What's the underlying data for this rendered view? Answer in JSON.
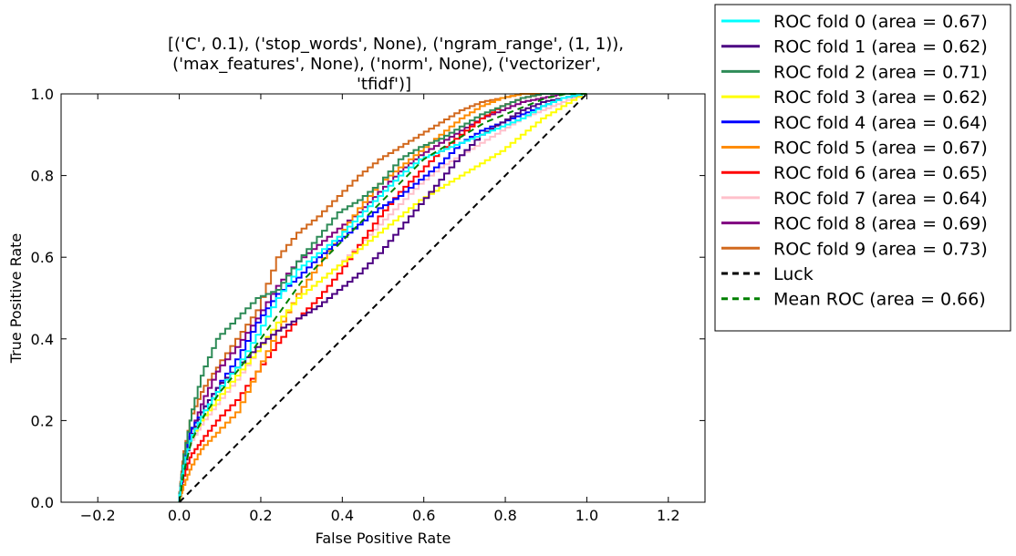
{
  "chart_data": {
    "type": "line",
    "title_lines": [
      "[('C', 0.1), ('stop_words', None), ('ngram_range', (1, 1)),",
      "('max_features', None), ('norm', None), ('vectorizer',",
      "'tfidf')]"
    ],
    "xlabel": "False Positive Rate",
    "ylabel": "True Positive Rate",
    "xlim": [
      -0.29,
      1.29
    ],
    "ylim": [
      0.0,
      1.0
    ],
    "x_ticks": [
      "−0.2",
      "0.0",
      "0.2",
      "0.4",
      "0.6",
      "0.8",
      "1.0",
      "1.2"
    ],
    "x_tick_values": [
      -0.2,
      0.0,
      0.2,
      0.4,
      0.6,
      0.8,
      1.0,
      1.2
    ],
    "y_ticks": [
      "0.0",
      "0.2",
      "0.4",
      "0.6",
      "0.8",
      "1.0"
    ],
    "y_tick_values": [
      0.0,
      0.2,
      0.4,
      0.6,
      0.8,
      1.0
    ],
    "grid": false,
    "legend_position": "outside-right",
    "series": [
      {
        "name": "ROC fold 0 (area = 0.67)",
        "color": "#00ffff",
        "dash": "solid",
        "x": [
          0,
          0.01,
          0.03,
          0.06,
          0.1,
          0.15,
          0.2,
          0.25,
          0.3,
          0.35,
          0.4,
          0.45,
          0.5,
          0.55,
          0.6,
          0.65,
          0.7,
          0.75,
          0.8,
          0.85,
          0.9,
          0.95,
          1.0
        ],
        "y": [
          0,
          0.07,
          0.15,
          0.21,
          0.27,
          0.33,
          0.41,
          0.5,
          0.57,
          0.61,
          0.65,
          0.7,
          0.75,
          0.8,
          0.84,
          0.86,
          0.88,
          0.9,
          0.92,
          0.94,
          0.97,
          0.99,
          1.0
        ]
      },
      {
        "name": "ROC fold 1 (area = 0.62)",
        "color": "#4b0082",
        "dash": "solid",
        "x": [
          0,
          0.01,
          0.03,
          0.06,
          0.1,
          0.15,
          0.2,
          0.25,
          0.3,
          0.35,
          0.4,
          0.45,
          0.5,
          0.55,
          0.6,
          0.65,
          0.7,
          0.75,
          0.8,
          0.85,
          0.9,
          0.95,
          1.0
        ],
        "y": [
          0,
          0.06,
          0.15,
          0.22,
          0.28,
          0.33,
          0.38,
          0.42,
          0.45,
          0.48,
          0.52,
          0.56,
          0.61,
          0.67,
          0.73,
          0.79,
          0.85,
          0.9,
          0.93,
          0.96,
          0.98,
          0.99,
          1.0
        ]
      },
      {
        "name": "ROC fold 2 (area = 0.71)",
        "color": "#2e8b57",
        "dash": "solid",
        "x": [
          0,
          0.01,
          0.03,
          0.06,
          0.1,
          0.15,
          0.2,
          0.25,
          0.3,
          0.35,
          0.4,
          0.45,
          0.5,
          0.55,
          0.6,
          0.65,
          0.7,
          0.75,
          0.8,
          0.85,
          0.9,
          0.95,
          1.0
        ],
        "y": [
          0,
          0.09,
          0.2,
          0.31,
          0.4,
          0.45,
          0.5,
          0.52,
          0.59,
          0.65,
          0.71,
          0.74,
          0.78,
          0.84,
          0.87,
          0.89,
          0.92,
          0.95,
          0.97,
          0.99,
          1.0,
          1.0,
          1.0
        ]
      },
      {
        "name": "ROC fold 3 (area = 0.62)",
        "color": "#ffff00",
        "dash": "solid",
        "x": [
          0,
          0.01,
          0.03,
          0.06,
          0.1,
          0.15,
          0.2,
          0.25,
          0.3,
          0.35,
          0.4,
          0.45,
          0.5,
          0.55,
          0.6,
          0.65,
          0.7,
          0.75,
          0.8,
          0.85,
          0.9,
          0.95,
          1.0
        ],
        "y": [
          0,
          0.07,
          0.15,
          0.2,
          0.25,
          0.31,
          0.37,
          0.44,
          0.5,
          0.54,
          0.58,
          0.62,
          0.66,
          0.7,
          0.74,
          0.77,
          0.8,
          0.83,
          0.86,
          0.9,
          0.94,
          0.97,
          1.0
        ]
      },
      {
        "name": "ROC fold 4 (area = 0.64)",
        "color": "#0000ff",
        "dash": "solid",
        "x": [
          0,
          0.01,
          0.03,
          0.06,
          0.1,
          0.15,
          0.2,
          0.25,
          0.3,
          0.35,
          0.4,
          0.45,
          0.5,
          0.55,
          0.6,
          0.65,
          0.7,
          0.75,
          0.8,
          0.85,
          0.9,
          0.95,
          1.0
        ],
        "y": [
          0,
          0.08,
          0.17,
          0.22,
          0.28,
          0.35,
          0.44,
          0.51,
          0.55,
          0.6,
          0.64,
          0.68,
          0.72,
          0.75,
          0.79,
          0.83,
          0.88,
          0.91,
          0.93,
          0.95,
          0.97,
          0.99,
          1.0
        ]
      },
      {
        "name": "ROC fold 5 (area = 0.67)",
        "color": "#ff8c00",
        "dash": "solid",
        "x": [
          0,
          0.01,
          0.03,
          0.06,
          0.1,
          0.15,
          0.2,
          0.25,
          0.3,
          0.35,
          0.4,
          0.45,
          0.5,
          0.55,
          0.6,
          0.65,
          0.7,
          0.75,
          0.8,
          0.85,
          0.9,
          0.95,
          1.0
        ],
        "y": [
          0,
          0.03,
          0.08,
          0.13,
          0.17,
          0.22,
          0.32,
          0.42,
          0.51,
          0.58,
          0.65,
          0.72,
          0.78,
          0.82,
          0.86,
          0.9,
          0.94,
          0.97,
          0.99,
          1.0,
          1.0,
          1.0,
          1.0
        ]
      },
      {
        "name": "ROC fold 6 (area = 0.65)",
        "color": "#ff0000",
        "dash": "solid",
        "x": [
          0,
          0.01,
          0.03,
          0.06,
          0.1,
          0.15,
          0.2,
          0.25,
          0.3,
          0.35,
          0.4,
          0.45,
          0.5,
          0.55,
          0.6,
          0.65,
          0.7,
          0.75,
          0.8,
          0.85,
          0.9,
          0.95,
          1.0
        ],
        "y": [
          0,
          0.05,
          0.11,
          0.15,
          0.2,
          0.25,
          0.32,
          0.39,
          0.45,
          0.5,
          0.56,
          0.63,
          0.7,
          0.76,
          0.81,
          0.86,
          0.9,
          0.94,
          0.97,
          0.99,
          1.0,
          1.0,
          1.0
        ]
      },
      {
        "name": "ROC fold 7 (area = 0.64)",
        "color": "#ffc0cb",
        "dash": "solid",
        "x": [
          0,
          0.01,
          0.03,
          0.06,
          0.1,
          0.15,
          0.2,
          0.25,
          0.3,
          0.35,
          0.4,
          0.45,
          0.5,
          0.55,
          0.6,
          0.65,
          0.7,
          0.75,
          0.8,
          0.85,
          0.9,
          0.95,
          1.0
        ],
        "y": [
          0,
          0.06,
          0.14,
          0.19,
          0.24,
          0.3,
          0.37,
          0.44,
          0.5,
          0.54,
          0.58,
          0.63,
          0.68,
          0.73,
          0.78,
          0.82,
          0.85,
          0.88,
          0.91,
          0.94,
          0.96,
          0.98,
          1.0
        ]
      },
      {
        "name": "ROC fold 8 (area = 0.69)",
        "color": "#800080",
        "dash": "solid",
        "x": [
          0,
          0.01,
          0.03,
          0.06,
          0.1,
          0.15,
          0.2,
          0.25,
          0.3,
          0.35,
          0.4,
          0.45,
          0.5,
          0.55,
          0.6,
          0.65,
          0.7,
          0.75,
          0.8,
          0.85,
          0.9,
          0.95,
          1.0
        ],
        "y": [
          0,
          0.07,
          0.16,
          0.24,
          0.32,
          0.38,
          0.45,
          0.53,
          0.59,
          0.63,
          0.67,
          0.71,
          0.76,
          0.81,
          0.85,
          0.88,
          0.91,
          0.94,
          0.96,
          0.98,
          0.99,
          1.0,
          1.0
        ]
      },
      {
        "name": "ROC fold 9 (area = 0.73)",
        "color": "#d2691e",
        "dash": "solid",
        "x": [
          0,
          0.01,
          0.03,
          0.06,
          0.1,
          0.15,
          0.2,
          0.25,
          0.3,
          0.35,
          0.4,
          0.45,
          0.5,
          0.55,
          0.6,
          0.65,
          0.7,
          0.75,
          0.8,
          0.85,
          0.9,
          0.95,
          1.0
        ],
        "y": [
          0,
          0.1,
          0.2,
          0.27,
          0.33,
          0.4,
          0.47,
          0.6,
          0.66,
          0.7,
          0.75,
          0.8,
          0.84,
          0.87,
          0.9,
          0.93,
          0.96,
          0.98,
          0.99,
          1.0,
          1.0,
          1.0,
          1.0
        ]
      },
      {
        "name": "Luck",
        "color": "#000000",
        "dash": "dashed",
        "x": [
          0,
          1
        ],
        "y": [
          0,
          1
        ]
      },
      {
        "name": "Mean ROC (area = 0.66)",
        "color": "#008000",
        "dash": "dashed",
        "x": [
          0,
          0.01,
          0.03,
          0.06,
          0.1,
          0.15,
          0.2,
          0.25,
          0.3,
          0.35,
          0.4,
          0.45,
          0.5,
          0.55,
          0.6,
          0.65,
          0.7,
          0.75,
          0.8,
          0.85,
          0.9,
          0.95,
          1.0
        ],
        "y": [
          0,
          0.07,
          0.15,
          0.21,
          0.27,
          0.33,
          0.4,
          0.47,
          0.54,
          0.59,
          0.64,
          0.69,
          0.74,
          0.79,
          0.84,
          0.87,
          0.9,
          0.93,
          0.95,
          0.97,
          0.99,
          1.0,
          1.0
        ]
      }
    ]
  }
}
